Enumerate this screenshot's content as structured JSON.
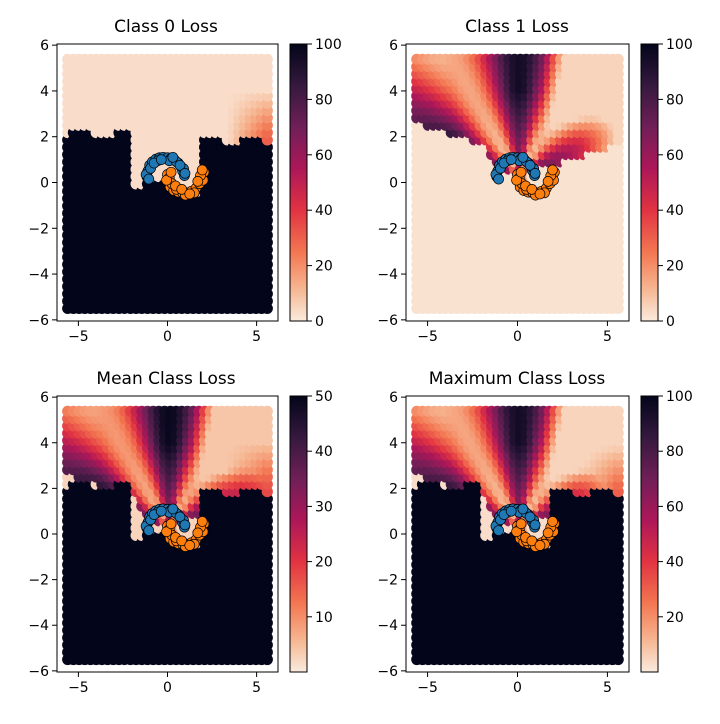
{
  "chart_data": [
    {
      "type": "scatter",
      "title": "Class 0 Loss",
      "xlim": [
        -6.2,
        6.2
      ],
      "ylim": [
        -6.05,
        6.05
      ],
      "xticks": [
        -5,
        0,
        5
      ],
      "xtick_labels": [
        "−5",
        "0",
        "5"
      ],
      "yticks": [
        -6,
        -4,
        -2,
        0,
        2,
        4,
        6
      ],
      "ytick_labels": [
        "−6",
        "−4",
        "−2",
        "0",
        "2",
        "4",
        "6"
      ],
      "colorbar": {
        "range": [
          0,
          100
        ],
        "ticks": [
          0,
          20,
          40,
          60,
          80,
          100
        ],
        "tick_labels": [
          "0",
          "20",
          "40",
          "60",
          "80",
          "100"
        ]
      },
      "loss_map": "class0",
      "legend": "none"
    },
    {
      "type": "scatter",
      "title": "Class 1 Loss",
      "xlim": [
        -6.2,
        6.2
      ],
      "ylim": [
        -6.05,
        6.05
      ],
      "xticks": [
        -5,
        0,
        5
      ],
      "xtick_labels": [
        "−5",
        "0",
        "5"
      ],
      "yticks": [
        -6,
        -4,
        -2,
        0,
        2,
        4,
        6
      ],
      "ytick_labels": [
        "−6",
        "−4",
        "−2",
        "0",
        "2",
        "4",
        "6"
      ],
      "colorbar": {
        "range": [
          0,
          100
        ],
        "ticks": [
          0,
          20,
          40,
          60,
          80,
          100
        ],
        "tick_labels": [
          "0",
          "20",
          "40",
          "60",
          "80",
          "100"
        ]
      },
      "loss_map": "class1",
      "legend": "none"
    },
    {
      "type": "scatter",
      "title": "Mean Class Loss",
      "xlim": [
        -6.2,
        6.2
      ],
      "ylim": [
        -6.05,
        6.05
      ],
      "xticks": [
        -5,
        0,
        5
      ],
      "xtick_labels": [
        "−5",
        "0",
        "5"
      ],
      "yticks": [
        -6,
        -4,
        -2,
        0,
        2,
        4,
        6
      ],
      "ytick_labels": [
        "−6",
        "−4",
        "−2",
        "0",
        "2",
        "4",
        "6"
      ],
      "colorbar": {
        "range": [
          0,
          50
        ],
        "ticks": [
          10,
          20,
          30,
          40,
          50
        ],
        "tick_labels": [
          "10",
          "20",
          "30",
          "40",
          "50"
        ]
      },
      "loss_map": "mean",
      "legend": "none"
    },
    {
      "type": "scatter",
      "title": "Maximum Class Loss",
      "xlim": [
        -6.2,
        6.2
      ],
      "ylim": [
        -6.05,
        6.05
      ],
      "xticks": [
        -5,
        0,
        5
      ],
      "xtick_labels": [
        "−5",
        "0",
        "5"
      ],
      "yticks": [
        -6,
        -4,
        -2,
        0,
        2,
        4,
        6
      ],
      "ytick_labels": [
        "−6",
        "−4",
        "−2",
        "0",
        "2",
        "4",
        "6"
      ],
      "colorbar": {
        "range": [
          0,
          100
        ],
        "ticks": [
          20,
          40,
          60,
          80,
          100
        ],
        "tick_labels": [
          "20",
          "40",
          "60",
          "80",
          "100"
        ]
      },
      "loss_map": "max",
      "legend": "none"
    }
  ],
  "dataset": {
    "description_free": true,
    "grid_extent": {
      "x": [
        -5.6,
        5.6
      ],
      "y": [
        -5.5,
        5.6
      ]
    },
    "class0_color": "#1f77b4",
    "class1_color": "#ff7f0e",
    "class0_points": [
      [
        -1.15,
        0.25
      ],
      [
        -1.1,
        0.5
      ],
      [
        -1.0,
        0.75
      ],
      [
        -0.85,
        0.9
      ],
      [
        -0.65,
        1.02
      ],
      [
        -0.45,
        1.08
      ],
      [
        -0.25,
        1.1
      ],
      [
        0.0,
        1.08
      ],
      [
        0.2,
        1.05
      ],
      [
        0.4,
        0.98
      ],
      [
        0.6,
        0.85
      ],
      [
        0.75,
        0.7
      ],
      [
        0.85,
        0.5
      ],
      [
        0.95,
        0.3
      ],
      [
        -1.2,
        0.35
      ],
      [
        -0.95,
        0.62
      ],
      [
        -0.55,
        0.95
      ],
      [
        0.1,
        0.95
      ],
      [
        0.5,
        0.9
      ],
      [
        0.9,
        0.6
      ],
      [
        -1.05,
        0.15
      ],
      [
        -0.75,
        0.85
      ],
      [
        -0.35,
        1.0
      ],
      [
        0.3,
        1.1
      ],
      [
        0.7,
        0.75
      ],
      [
        0.98,
        0.4
      ]
    ],
    "class1_points": [
      [
        0.0,
        0.35
      ],
      [
        0.05,
        0.05
      ],
      [
        0.15,
        -0.2
      ],
      [
        0.35,
        -0.35
      ],
      [
        0.6,
        -0.42
      ],
      [
        0.85,
        -0.45
      ],
      [
        1.1,
        -0.45
      ],
      [
        1.35,
        -0.38
      ],
      [
        1.6,
        -0.25
      ],
      [
        1.8,
        -0.05
      ],
      [
        1.95,
        0.2
      ],
      [
        2.05,
        0.45
      ],
      [
        2.0,
        0.1
      ],
      [
        0.1,
        0.2
      ],
      [
        0.25,
        -0.05
      ],
      [
        0.5,
        -0.3
      ],
      [
        1.0,
        -0.55
      ],
      [
        1.5,
        -0.45
      ],
      [
        1.85,
        0.3
      ],
      [
        0.45,
        -0.15
      ],
      [
        0.8,
        -0.3
      ],
      [
        1.25,
        -0.5
      ],
      [
        1.7,
        0.05
      ],
      [
        -0.05,
        0.1
      ],
      [
        0.2,
        0.45
      ],
      [
        1.95,
        0.55
      ]
    ]
  }
}
